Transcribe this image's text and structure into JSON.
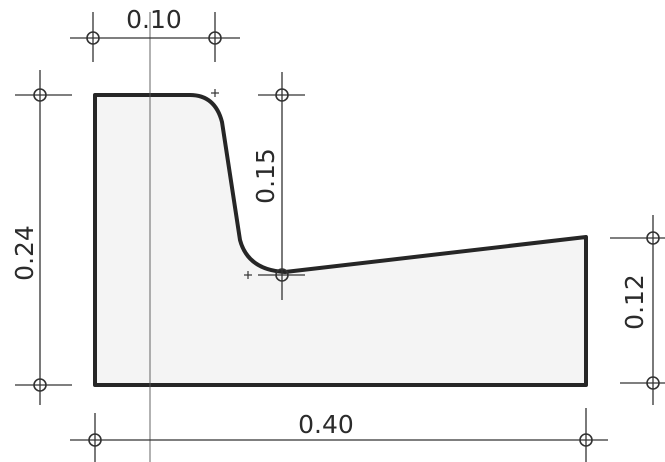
{
  "dimensions": {
    "top_width": "0.10",
    "left_height": "0.24",
    "middle_height": "0.15",
    "right_height": "0.12",
    "bottom_width": "0.40"
  }
}
